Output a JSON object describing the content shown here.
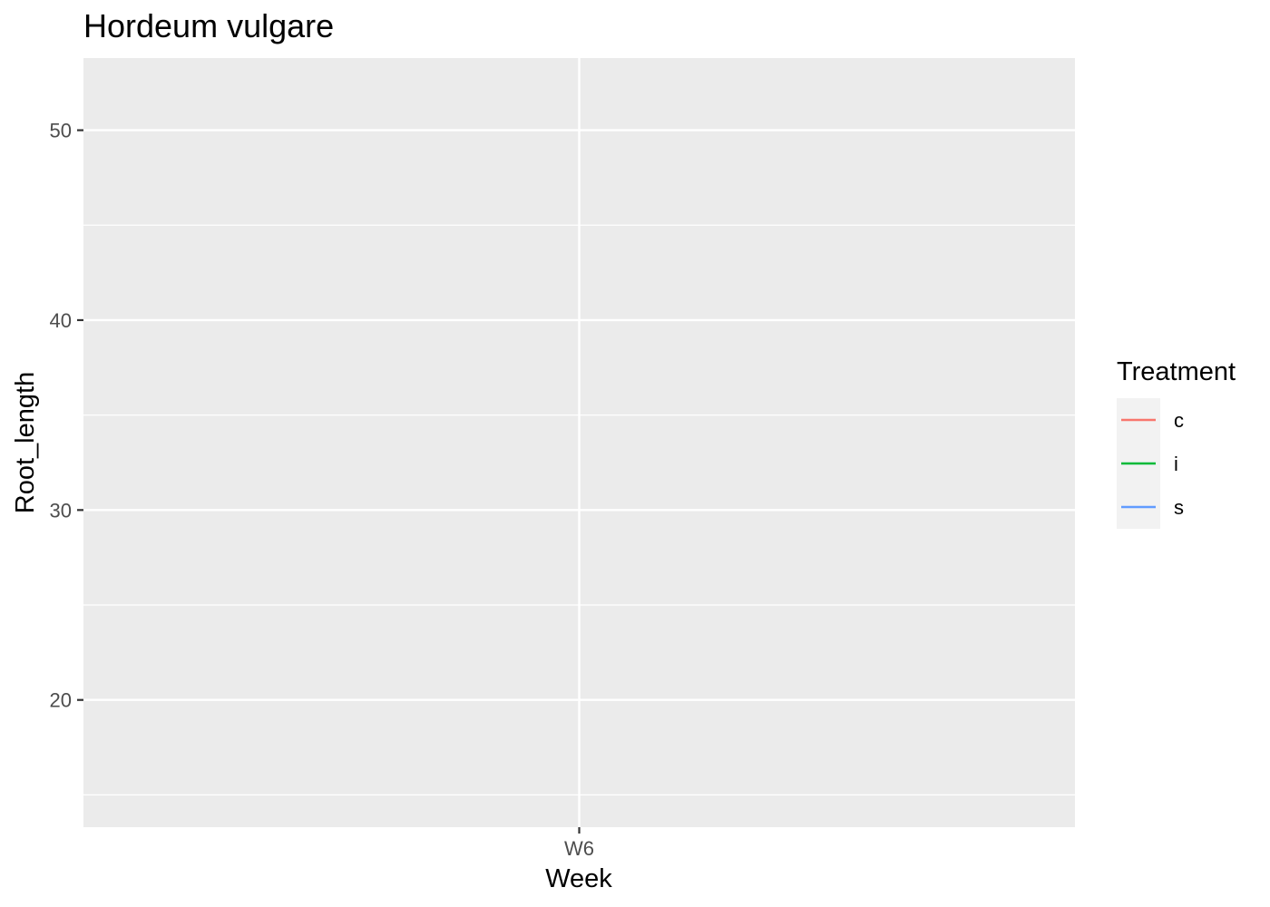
{
  "chart_data": {
    "type": "line",
    "title": "Hordeum vulgare",
    "xlabel": "Week",
    "ylabel": "Root_length",
    "categories": [
      "W6"
    ],
    "ylim": [
      13.3,
      53.8
    ],
    "y_major_ticks": [
      20,
      30,
      40,
      50
    ],
    "y_minor_ticks": [
      15,
      25,
      35,
      45
    ],
    "grid": true,
    "panel_background": "#EBEBEB",
    "grid_color": "#FFFFFF",
    "legend": {
      "title": "Treatment",
      "position": "right",
      "entries": [
        {
          "label": "c",
          "color": "#F8766D"
        },
        {
          "label": "i",
          "color": "#00BA38"
        },
        {
          "label": "s",
          "color": "#619CFF"
        }
      ]
    },
    "series": [
      {
        "name": "c",
        "color": "#F8766D",
        "values": [
          null
        ]
      },
      {
        "name": "i",
        "color": "#00BA38",
        "values": [
          null
        ]
      },
      {
        "name": "s",
        "color": "#619CFF",
        "values": [
          null
        ]
      }
    ]
  }
}
